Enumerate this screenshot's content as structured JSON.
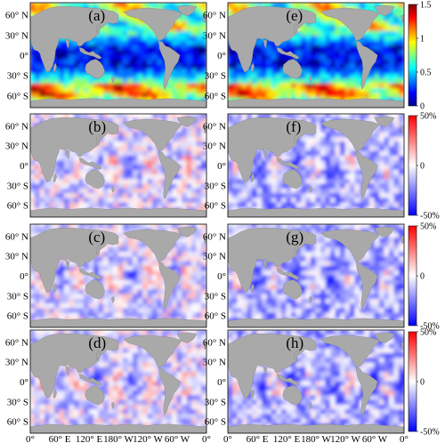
{
  "figure": {
    "panels": [
      {
        "label": "(a)",
        "field": "magnitude"
      },
      {
        "label": "(b)",
        "field": "relative-difference"
      },
      {
        "label": "(c)",
        "field": "relative-difference"
      },
      {
        "label": "(d)",
        "field": "relative-difference"
      },
      {
        "label": "(e)",
        "field": "magnitude"
      },
      {
        "label": "(f)",
        "field": "relative-difference"
      },
      {
        "label": "(g)",
        "field": "relative-difference"
      },
      {
        "label": "(h)",
        "field": "relative-difference"
      }
    ],
    "lat_ticks": [
      "60° N",
      "30° N",
      "0°",
      "30° S",
      "60° S"
    ],
    "lon_ticks_left": [
      "0°",
      "60° E",
      "120° E",
      "180° W",
      "120° W",
      "60° W",
      "0°"
    ],
    "lon_ticks_right": [
      "0°",
      "60° E",
      "120° E",
      "180° W",
      "120° W",
      "60° W",
      "0°"
    ],
    "colorbars": [
      {
        "ticks": [
          "1.5",
          "1",
          "0.5",
          "0"
        ],
        "range": [
          0,
          1.5
        ],
        "colormap": "jet"
      },
      {
        "ticks": [
          "50%",
          "0",
          "-50%"
        ],
        "range": [
          -50,
          50
        ],
        "colormap": "blue-white-red"
      },
      {
        "ticks": [
          "50%",
          "0",
          "-50%"
        ],
        "range": [
          -50,
          50
        ],
        "colormap": "blue-white-red"
      },
      {
        "ticks": [
          "50%",
          "0",
          "-50%"
        ],
        "range": [
          -50,
          50
        ],
        "colormap": "blue-white-red"
      }
    ],
    "land_color": "#a9a9a9"
  },
  "chart_data": {
    "type": "heatmap",
    "map_projection": "global lat-lon",
    "lon_range": [
      0,
      360
    ],
    "lat_range": [
      -80,
      80
    ],
    "row_ranges": [
      [
        0,
        1.5
      ],
      [
        -50,
        50
      ],
      [
        -50,
        50
      ],
      [
        -50,
        50
      ]
    ]
  }
}
